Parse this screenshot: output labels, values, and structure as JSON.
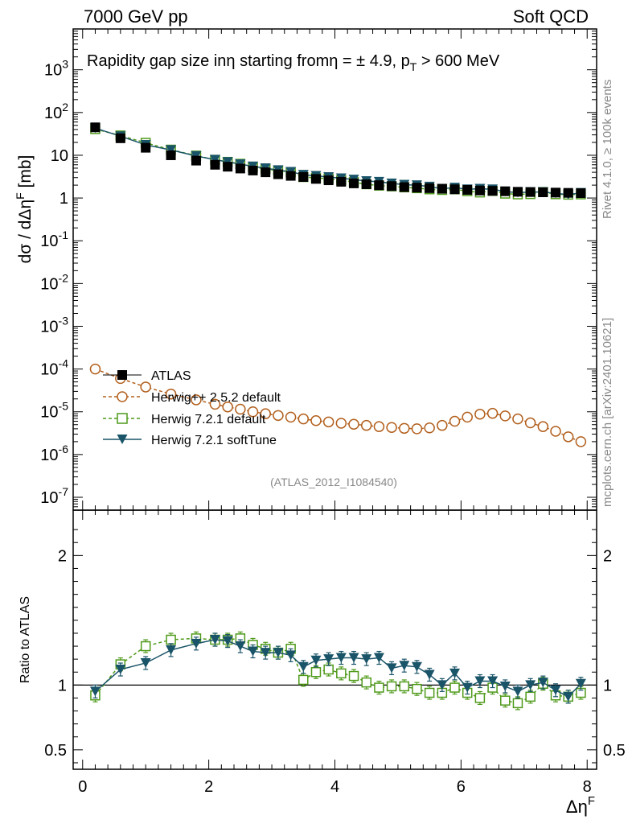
{
  "header": {
    "energy_label": "7000 GeV pp",
    "process_label": "Soft QCD",
    "plot_title": "Rapidity gap size inη starting fromη = ± 4.9, p",
    "plot_title_sub": "T",
    "plot_title_tail": " > 600 MeV",
    "analysis_id": "(ATLAS_2012_I1084540)"
  },
  "side_labels": {
    "rivet": "Rivet 4.1.0, ≥ 100k events",
    "mcplots": "mcplots.cern.ch [arXiv:2401.10621]"
  },
  "axes": {
    "ylabel_main": "dσ / dΔη",
    "ylabel_main_sup": "F",
    "ylabel_main_tail": " [mb]",
    "ylabel_ratio": "Ratio to ATLAS",
    "xlabel": "Δη",
    "xlabel_sup": "F"
  },
  "legend": {
    "atlas": "ATLAS",
    "herwigpp": "Herwig++ 2.5.2 default",
    "h721_default": "Herwig 7.2.1 default",
    "h721_soft": "Herwig 7.2.1 softTune"
  },
  "colors": {
    "atlas": "#000000",
    "herwigpp": "#b2601e",
    "h721_default": "#4f9a1a",
    "h721_soft": "#1a5468"
  },
  "chart_data": [
    {
      "type": "scatter",
      "title": "Rapidity gap size in η starting from η = ± 4.9, pT > 600 MeV",
      "xlabel": "ΔηF",
      "ylabel": "dσ / dΔηF [mb]",
      "yscale": "log",
      "xlim": [
        -0.15,
        8.15
      ],
      "ylim": [
        5e-08,
        9000
      ],
      "x_ticks": [
        0,
        2,
        4,
        6,
        8
      ],
      "y_tick_labels": [
        "10^-7",
        "10^-6",
        "10^-5",
        "10^-4",
        "10^-3",
        "10^-2",
        "10^-1",
        "1",
        "10",
        "10^2",
        "10^3"
      ],
      "x": [
        0.2,
        0.6,
        1.0,
        1.4,
        1.8,
        2.1,
        2.3,
        2.5,
        2.7,
        2.9,
        3.1,
        3.3,
        3.5,
        3.7,
        3.9,
        4.1,
        4.3,
        4.5,
        4.7,
        4.9,
        5.1,
        5.3,
        5.5,
        5.7,
        5.9,
        6.1,
        6.3,
        6.5,
        6.7,
        6.9,
        7.1,
        7.3,
        7.5,
        7.7,
        7.9
      ],
      "series": [
        {
          "name": "ATLAS",
          "values": [
            45,
            25,
            15,
            10,
            7.5,
            6.0,
            5.4,
            4.9,
            4.4,
            4.0,
            3.6,
            3.3,
            3.1,
            2.8,
            2.6,
            2.4,
            2.2,
            2.1,
            2.0,
            1.9,
            1.8,
            1.75,
            1.7,
            1.65,
            1.6,
            1.55,
            1.5,
            1.47,
            1.44,
            1.4,
            1.38,
            1.36,
            1.34,
            1.32,
            1.3
          ]
        },
        {
          "name": "Herwig++ 2.5.2 default",
          "values": [
            0.0001,
            6e-05,
            3.8e-05,
            2.6e-05,
            1.9e-05,
            1.5e-05,
            1.3e-05,
            1.15e-05,
            1e-05,
            9e-06,
            8.2e-06,
            7.5e-06,
            6.8e-06,
            6.2e-06,
            5.8e-06,
            5.4e-06,
            5.1e-06,
            4.8e-06,
            4.5e-06,
            4.3e-06,
            4.1e-06,
            4e-06,
            4.2e-06,
            4.8e-06,
            6e-06,
            7.5e-06,
            8.8e-06,
            9.2e-06,
            8e-06,
            6.8e-06,
            5.5e-06,
            4.5e-06,
            3.5e-06,
            2.6e-06,
            2e-06
          ]
        },
        {
          "name": "Herwig 7.2.1 default",
          "values": [
            41,
            29,
            19.5,
            13.5,
            9.8,
            7.8,
            7.0,
            6.3,
            5.3,
            4.8,
            4.4,
            4.0,
            3.1,
            2.95,
            2.85,
            2.6,
            2.35,
            2.1,
            1.95,
            1.88,
            1.78,
            1.7,
            1.6,
            1.55,
            1.6,
            1.45,
            1.35,
            1.47,
            1.27,
            1.22,
            1.24,
            1.38,
            1.23,
            1.2,
            1.22
          ]
        },
        {
          "name": "Herwig 7.2.1 softTune",
          "values": [
            43,
            28,
            17.5,
            13.3,
            9.6,
            7.9,
            7.0,
            6.2,
            5.5,
            5.0,
            4.5,
            4.1,
            3.5,
            3.3,
            3.1,
            2.9,
            2.7,
            2.5,
            2.4,
            2.2,
            2.05,
            2.0,
            1.85,
            1.65,
            1.75,
            1.6,
            1.65,
            1.6,
            1.42,
            1.33,
            1.38,
            1.38,
            1.29,
            1.2,
            1.32
          ]
        }
      ]
    },
    {
      "type": "scatter",
      "ylabel": "Ratio to ATLAS",
      "xlabel": "ΔηF",
      "xlim": [
        -0.15,
        8.15
      ],
      "ylim": [
        0.35,
        2.35
      ],
      "y_ticks": [
        0.5,
        1,
        2
      ],
      "y_tick_labels": [
        "0.5",
        "1",
        "2"
      ],
      "reference_line": 1,
      "x": [
        0.2,
        0.6,
        1.0,
        1.4,
        1.8,
        2.1,
        2.3,
        2.5,
        2.7,
        2.9,
        3.1,
        3.3,
        3.5,
        3.7,
        3.9,
        4.1,
        4.3,
        4.5,
        4.7,
        4.9,
        5.1,
        5.3,
        5.5,
        5.7,
        5.9,
        6.1,
        6.3,
        6.5,
        6.7,
        6.9,
        7.1,
        7.3,
        7.5,
        7.7,
        7.9
      ],
      "series": [
        {
          "name": "Herwig 7.2.1 default",
          "values": [
            0.92,
            1.16,
            1.3,
            1.35,
            1.36,
            1.35,
            1.35,
            1.36,
            1.31,
            1.28,
            1.25,
            1.28,
            1.04,
            1.1,
            1.12,
            1.09,
            1.07,
            1.02,
            0.98,
            0.99,
            0.99,
            0.97,
            0.94,
            0.94,
            0.98,
            0.94,
            0.9,
            0.98,
            0.88,
            0.86,
            0.91,
            1.01,
            0.92,
            0.91,
            0.94
          ]
        },
        {
          "name": "Herwig 7.2.1 softTune",
          "values": [
            0.95,
            1.12,
            1.17,
            1.27,
            1.32,
            1.35,
            1.34,
            1.3,
            1.26,
            1.25,
            1.25,
            1.23,
            1.14,
            1.19,
            1.2,
            1.21,
            1.21,
            1.2,
            1.21,
            1.13,
            1.15,
            1.14,
            1.08,
            1.0,
            1.09,
            0.98,
            1.03,
            1.03,
            0.99,
            0.95,
            1.0,
            1.02,
            0.96,
            0.91,
            1.01
          ]
        }
      ]
    }
  ]
}
